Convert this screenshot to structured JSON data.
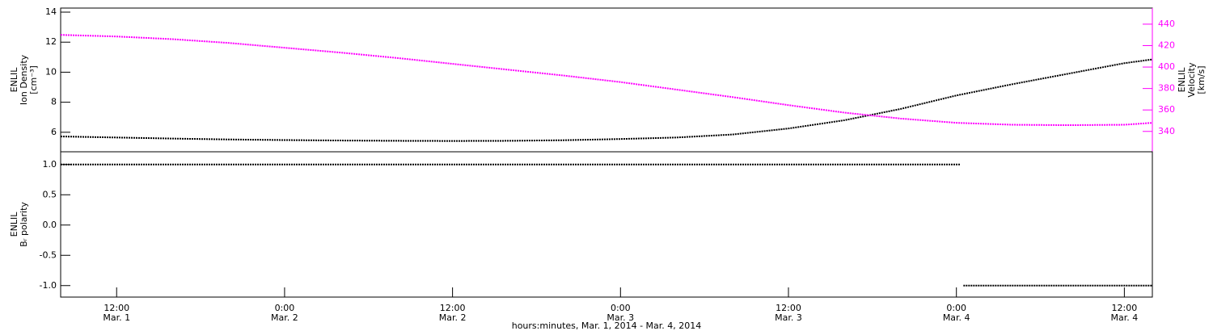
{
  "chart_data": [
    {
      "type": "line",
      "ylabel": [
        "ENLIL",
        "Ion Density",
        "[cm⁻³]"
      ],
      "y2label": [
        "ENLIL",
        "Velocity",
        "[km/s]"
      ],
      "xlim": [
        8,
        86
      ],
      "ylim": [
        4.7,
        14.27
      ],
      "yticks": [
        6,
        8,
        10,
        12,
        14
      ],
      "y2lim": [
        321,
        455
      ],
      "y2ticks": [
        340,
        360,
        380,
        400,
        420,
        440
      ],
      "y2color": "#ff00ff",
      "x": [
        8,
        12,
        16,
        20,
        24,
        28,
        32,
        36,
        40,
        44,
        48,
        52,
        56,
        60,
        64,
        68,
        72,
        76,
        80,
        84,
        86
      ],
      "series": [
        {
          "color": "#000000",
          "values": [
            5.72,
            5.65,
            5.58,
            5.52,
            5.48,
            5.45,
            5.43,
            5.42,
            5.43,
            5.47,
            5.55,
            5.65,
            5.85,
            6.25,
            6.8,
            7.55,
            8.45,
            9.2,
            9.9,
            10.6,
            10.85
          ]
        },
        {
          "color": "#ff00ff",
          "axis": "y2",
          "values": [
            430,
            428.5,
            426,
            422.5,
            418,
            413.5,
            408.5,
            403,
            397.5,
            392,
            386,
            379,
            372,
            364.5,
            357.5,
            352,
            348,
            346.2,
            345.8,
            346.2,
            348
          ]
        }
      ]
    },
    {
      "type": "line",
      "ylabel": [
        "ENLIL",
        "Bᵣ polarity"
      ],
      "xlabel": "hours:minutes, Mar.  1, 2014 - Mar.  4, 2014",
      "xlim": [
        8,
        86
      ],
      "xticks": [
        {
          "value": 12,
          "label": "12:00",
          "date": "Mar. 1"
        },
        {
          "value": 24,
          "label": "0:00",
          "date": "Mar. 2"
        },
        {
          "value": 36,
          "label": "12:00",
          "date": "Mar. 2"
        },
        {
          "value": 48,
          "label": "0:00",
          "date": "Mar. 3"
        },
        {
          "value": 60,
          "label": "12:00",
          "date": "Mar. 3"
        },
        {
          "value": 72,
          "label": "0:00",
          "date": "Mar. 4"
        },
        {
          "value": 84,
          "label": "12:00",
          "date": "Mar. 4"
        }
      ],
      "ylim": [
        -1.19,
        1.21
      ],
      "yticks": [
        {
          "value": -1,
          "label": "-1.0"
        },
        {
          "value": -0.5,
          "label": "-0.5"
        },
        {
          "value": 0,
          "label": "0.0"
        },
        {
          "value": 0.5,
          "label": "0.5"
        },
        {
          "value": 1,
          "label": "1.0"
        }
      ],
      "x": [
        8,
        72.3,
        72.4,
        72.5,
        86
      ],
      "series": [
        {
          "color": "#000000",
          "values": [
            1,
            1,
            null,
            -1,
            -1
          ]
        }
      ]
    }
  ]
}
